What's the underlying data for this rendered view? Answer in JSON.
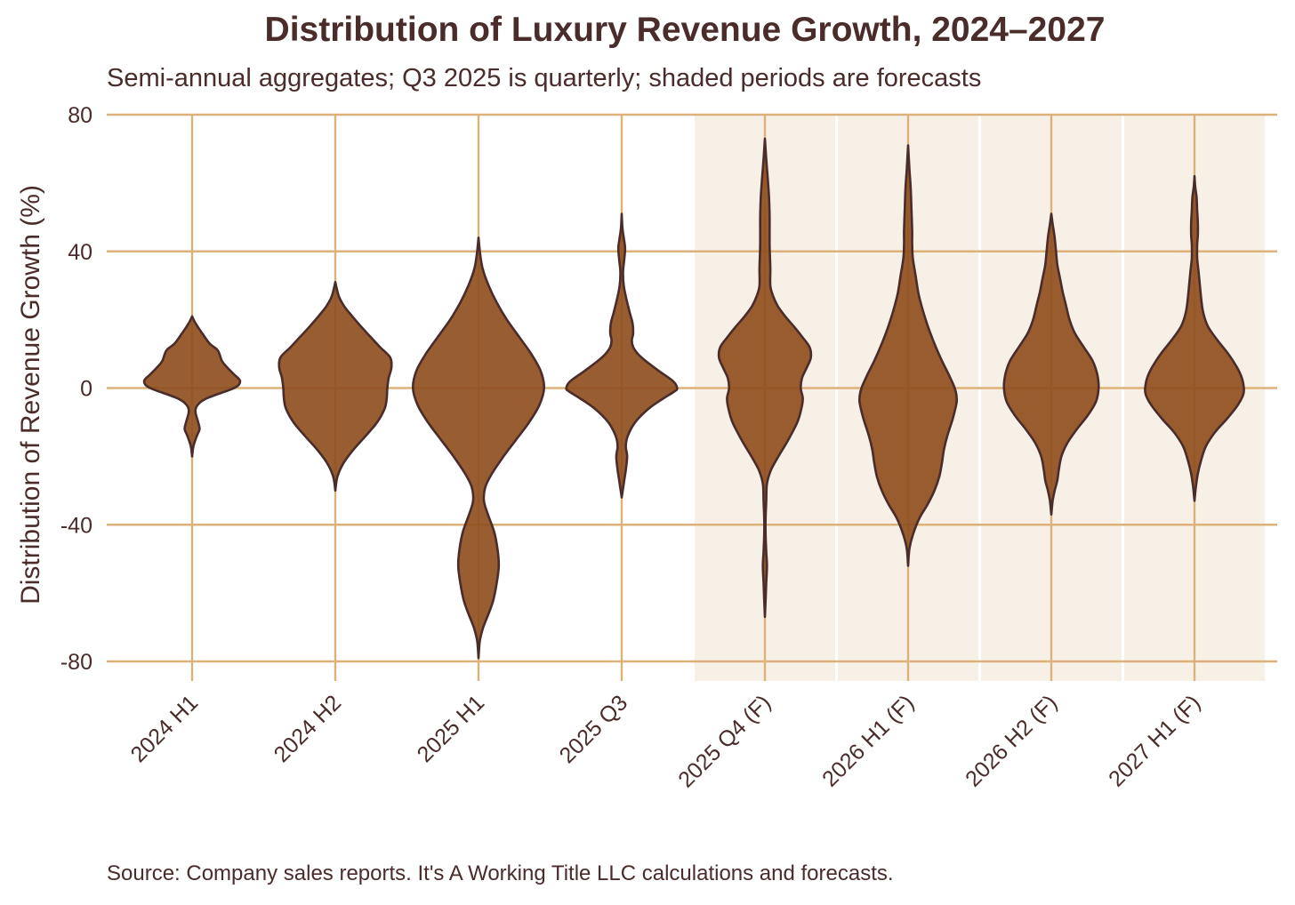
{
  "title": "Distribution of Luxury Revenue Growth, 2024–2027",
  "subtitle": "Semi-annual aggregates; Q3 2025 is quarterly; shaded periods are forecasts",
  "source": "Source: Company sales reports. It's A Working Title LLC calculations and forecasts.",
  "colors": {
    "violin_fill": "#8f4f1f",
    "violin_stroke": "#4a2c2a",
    "grid": "#ddb27a",
    "forecast_shade": "#f7f0e6",
    "text": "#4a2c2a"
  },
  "chart_data": {
    "type": "violin",
    "title": "Distribution of Luxury Revenue Growth, 2024–2027",
    "ylabel": "Distribution of Revenue Growth (%)",
    "xlabel": "",
    "ylim": [
      -80,
      80
    ],
    "ytick_values": [
      -80,
      -40,
      0,
      40,
      80
    ],
    "ytick_labels": [
      "-80",
      "-40",
      "0",
      "40",
      "80"
    ],
    "grid": true,
    "categories": [
      "2024 H1",
      "2024 H2",
      "2025 H1",
      "2025 Q3",
      "2025 Q4 (F)",
      "2026 H1 (F)",
      "2026 H2 (F)",
      "2027 H1 (F)"
    ],
    "forecast": [
      false,
      false,
      false,
      false,
      true,
      true,
      true,
      true
    ],
    "violins": [
      {
        "label": "2024 H1",
        "min": -20,
        "max": 21,
        "profile": [
          [
            -20,
            0
          ],
          [
            -17,
            0.02
          ],
          [
            -14,
            0.07
          ],
          [
            -12,
            0.11
          ],
          [
            -10,
            0.09
          ],
          [
            -7,
            0.05
          ],
          [
            -5,
            0.08
          ],
          [
            -3,
            0.22
          ],
          [
            0,
            0.62
          ],
          [
            2,
            0.71
          ],
          [
            4,
            0.62
          ],
          [
            6,
            0.52
          ],
          [
            8,
            0.44
          ],
          [
            11,
            0.38
          ],
          [
            13,
            0.26
          ],
          [
            16,
            0.15
          ],
          [
            19,
            0.05
          ],
          [
            21,
            0
          ]
        ]
      },
      {
        "label": "2024 H2",
        "min": -30,
        "max": 31,
        "profile": [
          [
            -30,
            0
          ],
          [
            -26,
            0.03
          ],
          [
            -22,
            0.12
          ],
          [
            -18,
            0.27
          ],
          [
            -14,
            0.45
          ],
          [
            -10,
            0.62
          ],
          [
            -6,
            0.73
          ],
          [
            -3,
            0.76
          ],
          [
            0,
            0.77
          ],
          [
            3,
            0.79
          ],
          [
            6,
            0.83
          ],
          [
            9,
            0.81
          ],
          [
            12,
            0.66
          ],
          [
            15,
            0.52
          ],
          [
            18,
            0.38
          ],
          [
            21,
            0.25
          ],
          [
            24,
            0.13
          ],
          [
            27,
            0.05
          ],
          [
            31,
            0
          ]
        ]
      },
      {
        "label": "2025 H1",
        "min": -79,
        "max": 44,
        "profile": [
          [
            -79,
            0
          ],
          [
            -74,
            0.02
          ],
          [
            -70,
            0.07
          ],
          [
            -66,
            0.15
          ],
          [
            -62,
            0.22
          ],
          [
            -57,
            0.27
          ],
          [
            -52,
            0.3
          ],
          [
            -47,
            0.28
          ],
          [
            -42,
            0.23
          ],
          [
            -37,
            0.14
          ],
          [
            -33,
            0.08
          ],
          [
            -29,
            0.1
          ],
          [
            -25,
            0.2
          ],
          [
            -20,
            0.37
          ],
          [
            -15,
            0.56
          ],
          [
            -10,
            0.75
          ],
          [
            -5,
            0.9
          ],
          [
            0,
            0.97
          ],
          [
            5,
            0.92
          ],
          [
            10,
            0.78
          ],
          [
            15,
            0.6
          ],
          [
            20,
            0.42
          ],
          [
            25,
            0.27
          ],
          [
            30,
            0.15
          ],
          [
            35,
            0.06
          ],
          [
            40,
            0.02
          ],
          [
            44,
            0
          ]
        ]
      },
      {
        "label": "2025 Q3",
        "min": -32,
        "max": 51,
        "profile": [
          [
            -32,
            0
          ],
          [
            -28,
            0.03
          ],
          [
            -24,
            0.06
          ],
          [
            -20,
            0.08
          ],
          [
            -17,
            0.06
          ],
          [
            -14,
            0.09
          ],
          [
            -10,
            0.2
          ],
          [
            -6,
            0.4
          ],
          [
            -3,
            0.62
          ],
          [
            -1,
            0.78
          ],
          [
            0,
            0.82
          ],
          [
            2,
            0.76
          ],
          [
            5,
            0.55
          ],
          [
            8,
            0.35
          ],
          [
            10,
            0.24
          ],
          [
            12,
            0.17
          ],
          [
            14,
            0.15
          ],
          [
            16,
            0.17
          ],
          [
            19,
            0.16
          ],
          [
            22,
            0.12
          ],
          [
            26,
            0.07
          ],
          [
            30,
            0.03
          ],
          [
            34,
            0.02
          ],
          [
            38,
            0.04
          ],
          [
            41,
            0.05
          ],
          [
            44,
            0.03
          ],
          [
            47,
            0.01
          ],
          [
            51,
            0
          ]
        ]
      },
      {
        "label": "2025 Q4 (F)",
        "min": -67,
        "max": 73,
        "profile": [
          [
            -67,
            0
          ],
          [
            -62,
            0.01
          ],
          [
            -57,
            0.02
          ],
          [
            -52,
            0.03
          ],
          [
            -48,
            0.02
          ],
          [
            -43,
            0.01
          ],
          [
            -38,
            0.01
          ],
          [
            -33,
            0.02
          ],
          [
            -28,
            0.03
          ],
          [
            -24,
            0.09
          ],
          [
            -20,
            0.2
          ],
          [
            -15,
            0.35
          ],
          [
            -10,
            0.48
          ],
          [
            -6,
            0.54
          ],
          [
            -3,
            0.56
          ],
          [
            0,
            0.53
          ],
          [
            3,
            0.55
          ],
          [
            6,
            0.62
          ],
          [
            9,
            0.68
          ],
          [
            12,
            0.66
          ],
          [
            15,
            0.55
          ],
          [
            18,
            0.43
          ],
          [
            21,
            0.3
          ],
          [
            24,
            0.19
          ],
          [
            27,
            0.12
          ],
          [
            30,
            0.08
          ],
          [
            35,
            0.08
          ],
          [
            42,
            0.07
          ],
          [
            50,
            0.07
          ],
          [
            56,
            0.06
          ],
          [
            62,
            0.04
          ],
          [
            67,
            0.02
          ],
          [
            73,
            0
          ]
        ]
      },
      {
        "label": "2026 H1 (F)",
        "min": -52,
        "max": 71,
        "profile": [
          [
            -52,
            0
          ],
          [
            -47,
            0.02
          ],
          [
            -43,
            0.07
          ],
          [
            -38,
            0.17
          ],
          [
            -34,
            0.29
          ],
          [
            -30,
            0.39
          ],
          [
            -26,
            0.46
          ],
          [
            -22,
            0.5
          ],
          [
            -18,
            0.53
          ],
          [
            -14,
            0.58
          ],
          [
            -9,
            0.66
          ],
          [
            -5,
            0.71
          ],
          [
            -3,
            0.72
          ],
          [
            0,
            0.69
          ],
          [
            4,
            0.6
          ],
          [
            8,
            0.5
          ],
          [
            12,
            0.41
          ],
          [
            16,
            0.33
          ],
          [
            20,
            0.26
          ],
          [
            24,
            0.2
          ],
          [
            28,
            0.15
          ],
          [
            33,
            0.11
          ],
          [
            38,
            0.07
          ],
          [
            42,
            0.06
          ],
          [
            46,
            0.06
          ],
          [
            52,
            0.05
          ],
          [
            58,
            0.04
          ],
          [
            64,
            0.02
          ],
          [
            71,
            0
          ]
        ]
      },
      {
        "label": "2026 H2 (F)",
        "min": -37,
        "max": 51,
        "profile": [
          [
            -37,
            0
          ],
          [
            -33,
            0.02
          ],
          [
            -30,
            0.05
          ],
          [
            -27,
            0.09
          ],
          [
            -24,
            0.11
          ],
          [
            -20,
            0.15
          ],
          [
            -16,
            0.24
          ],
          [
            -12,
            0.38
          ],
          [
            -8,
            0.54
          ],
          [
            -4,
            0.66
          ],
          [
            0,
            0.7
          ],
          [
            4,
            0.68
          ],
          [
            8,
            0.61
          ],
          [
            12,
            0.48
          ],
          [
            16,
            0.35
          ],
          [
            20,
            0.27
          ],
          [
            24,
            0.22
          ],
          [
            28,
            0.17
          ],
          [
            32,
            0.13
          ],
          [
            36,
            0.09
          ],
          [
            40,
            0.07
          ],
          [
            44,
            0.05
          ],
          [
            48,
            0.02
          ],
          [
            51,
            0
          ]
        ]
      },
      {
        "label": "2027 H1 (F)",
        "min": -33,
        "max": 62,
        "profile": [
          [
            -33,
            0
          ],
          [
            -29,
            0.02
          ],
          [
            -25,
            0.05
          ],
          [
            -21,
            0.1
          ],
          [
            -17,
            0.17
          ],
          [
            -13,
            0.3
          ],
          [
            -9,
            0.48
          ],
          [
            -5,
            0.64
          ],
          [
            -2,
            0.72
          ],
          [
            0,
            0.73
          ],
          [
            3,
            0.7
          ],
          [
            6,
            0.63
          ],
          [
            10,
            0.5
          ],
          [
            14,
            0.34
          ],
          [
            18,
            0.2
          ],
          [
            22,
            0.13
          ],
          [
            26,
            0.1
          ],
          [
            30,
            0.08
          ],
          [
            34,
            0.06
          ],
          [
            38,
            0.04
          ],
          [
            42,
            0.04
          ],
          [
            45,
            0.05
          ],
          [
            48,
            0.05
          ],
          [
            52,
            0.04
          ],
          [
            56,
            0.03
          ],
          [
            59,
            0.01
          ],
          [
            62,
            0
          ]
        ]
      }
    ]
  }
}
